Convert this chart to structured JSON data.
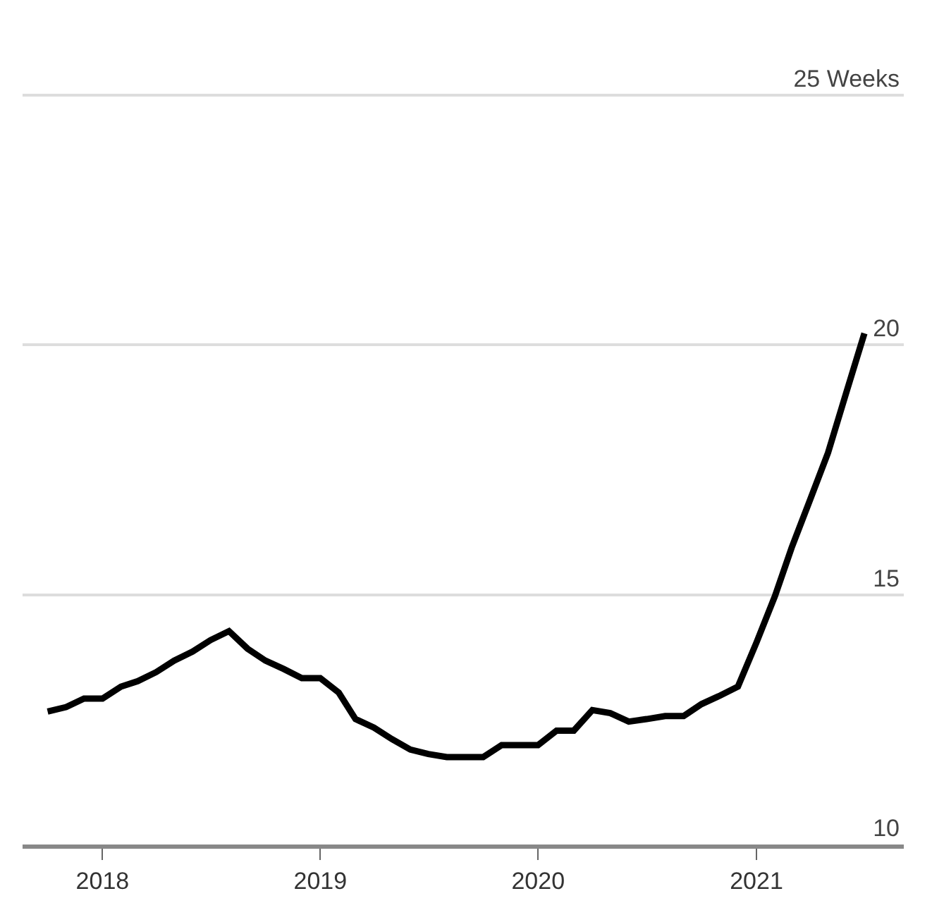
{
  "chart_data": {
    "type": "line",
    "x": [
      "2017-10",
      "2017-11",
      "2017-12",
      "2018-01",
      "2018-02",
      "2018-03",
      "2018-04",
      "2018-05",
      "2018-06",
      "2018-07",
      "2018-08",
      "2018-09",
      "2018-10",
      "2018-11",
      "2018-12",
      "2019-01",
      "2019-02",
      "2019-03",
      "2019-04",
      "2019-05",
      "2019-06",
      "2019-07",
      "2019-08",
      "2019-09",
      "2019-10",
      "2019-11",
      "2019-12",
      "2020-01",
      "2020-02",
      "2020-03",
      "2020-04",
      "2020-05",
      "2020-06",
      "2020-07",
      "2020-08",
      "2020-09",
      "2020-10",
      "2020-11",
      "2020-12",
      "2021-01",
      "2021-02",
      "2021-03",
      "2021-04",
      "2021-05",
      "2021-06",
      "2021-07"
    ],
    "series": [
      {
        "color": "#000000",
        "values": [
          12.66,
          12.75,
          12.92,
          12.92,
          13.16,
          13.27,
          13.45,
          13.68,
          13.86,
          14.09,
          14.27,
          13.92,
          13.68,
          13.51,
          13.33,
          13.33,
          13.04,
          12.51,
          12.34,
          12.11,
          11.9,
          11.81,
          11.75,
          11.75,
          11.75,
          11.99,
          11.99,
          11.99,
          12.28,
          12.28,
          12.69,
          12.63,
          12.46,
          12.51,
          12.57,
          12.57,
          12.81,
          12.98,
          13.16,
          14.04,
          14.97,
          15.94,
          16.9,
          17.84,
          19.06,
          20.23
        ]
      }
    ],
    "xlim": [
      "2017-08-20",
      "2021-09-05"
    ],
    "xticks": [
      {
        "value": "2018-01-01",
        "label": "2018"
      },
      {
        "value": "2019-01-01",
        "label": "2019"
      },
      {
        "value": "2020-01-01",
        "label": "2020"
      },
      {
        "value": "2021-01-01",
        "label": "2021"
      }
    ],
    "ylim": [
      10,
      26.9
    ],
    "yticks": [
      10,
      15,
      20,
      {
        "value": 25,
        "label": "25 Weeks"
      }
    ],
    "grid": "y",
    "legend": false,
    "marker": "none",
    "line_style": "solid"
  }
}
